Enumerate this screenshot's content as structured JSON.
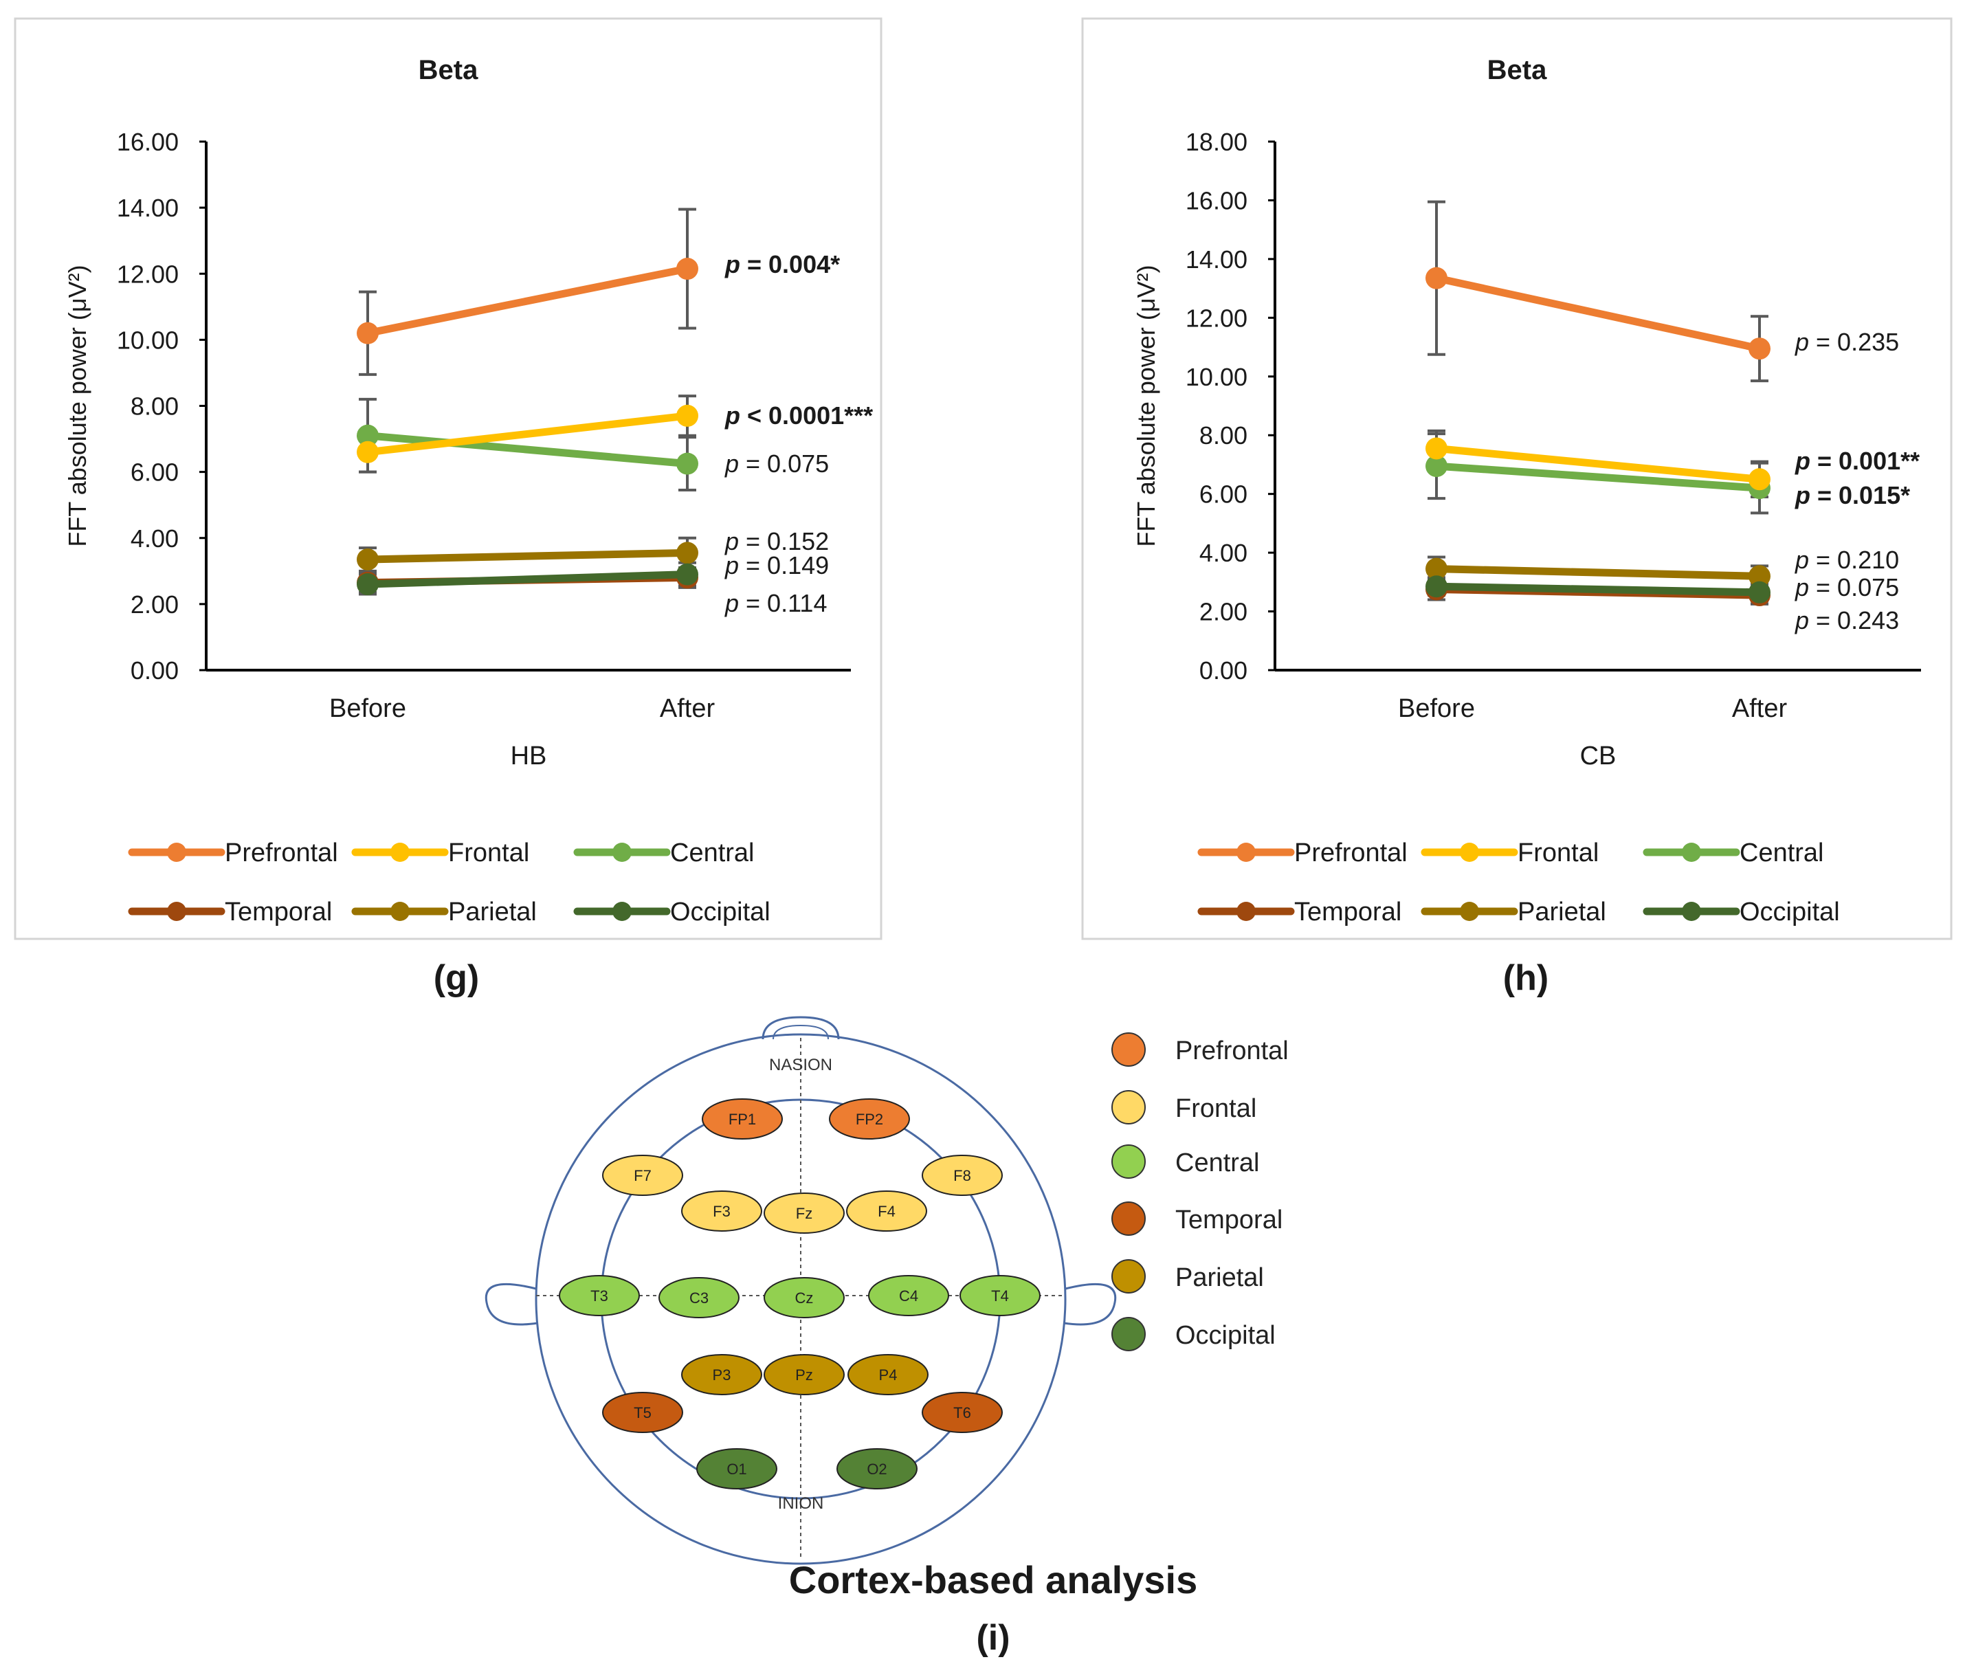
{
  "chart_data": [
    {
      "id": "g",
      "type": "line",
      "title": "Beta",
      "xlabel": "HB",
      "ylabel": "FFT absolute power (μV²)",
      "categories": [
        "Before",
        "After"
      ],
      "ylim": [
        0,
        16
      ],
      "yticks": [
        "0.00",
        "2.00",
        "4.00",
        "6.00",
        "8.00",
        "10.00",
        "12.00",
        "14.00",
        "16.00"
      ],
      "series": [
        {
          "name": "Prefrontal",
          "color": "#ED7D31",
          "values": [
            10.2,
            12.15
          ],
          "errors": [
            1.25,
            1.8
          ],
          "p_label": "p = 0.004*",
          "bold": true
        },
        {
          "name": "Frontal",
          "color": "#FFC000",
          "values": [
            6.6,
            7.7
          ],
          "errors": [
            0.6,
            0.6
          ],
          "p_label": "p < 0.0001***",
          "bold": true
        },
        {
          "name": "Central",
          "color": "#70AD47",
          "values": [
            7.1,
            6.25
          ],
          "errors": [
            1.1,
            0.8
          ],
          "p_label": "p = 0.075",
          "bold": false
        },
        {
          "name": "Temporal",
          "color": "#9E480E",
          "values": [
            2.65,
            2.8
          ],
          "errors": [
            0.3,
            0.3
          ],
          "p_label": "p = 0.114",
          "bold": false
        },
        {
          "name": "Parietal",
          "color": "#997300",
          "values": [
            3.35,
            3.55
          ],
          "errors": [
            0.35,
            0.45
          ],
          "p_label": "p = 0.152",
          "bold": false
        },
        {
          "name": "Occipital",
          "color": "#43682B",
          "values": [
            2.6,
            2.9
          ],
          "errors": [
            0.3,
            0.35
          ],
          "p_label": "p = 0.149",
          "bold": false
        }
      ],
      "panel_label": "(g)"
    },
    {
      "id": "h",
      "type": "line",
      "title": "Beta",
      "xlabel": "CB",
      "ylabel": "FFT absolute power (μV²)",
      "categories": [
        "Before",
        "After"
      ],
      "ylim": [
        0,
        18
      ],
      "yticks": [
        "0.00",
        "2.00",
        "4.00",
        "6.00",
        "8.00",
        "10.00",
        "12.00",
        "14.00",
        "16.00",
        "18.00"
      ],
      "series": [
        {
          "name": "Prefrontal",
          "color": "#ED7D31",
          "values": [
            13.35,
            10.95
          ],
          "errors": [
            2.6,
            1.1
          ],
          "p_label": "p = 0.235",
          "bold": false
        },
        {
          "name": "Frontal",
          "color": "#FFC000",
          "values": [
            7.55,
            6.5
          ],
          "errors": [
            0.6,
            0.6
          ],
          "p_label": "p = 0.001**",
          "bold": true
        },
        {
          "name": "Central",
          "color": "#70AD47",
          "values": [
            6.95,
            6.2
          ],
          "errors": [
            1.1,
            0.85
          ],
          "p_label": "p = 0.015*",
          "bold": true
        },
        {
          "name": "Temporal",
          "color": "#9E480E",
          "values": [
            2.75,
            2.55
          ],
          "errors": [
            0.35,
            0.3
          ],
          "p_label": "p = 0.243",
          "bold": false
        },
        {
          "name": "Parietal",
          "color": "#997300",
          "values": [
            3.45,
            3.2
          ],
          "errors": [
            0.4,
            0.35
          ],
          "p_label": "p = 0.210",
          "bold": false
        },
        {
          "name": "Occipital",
          "color": "#43682B",
          "values": [
            2.85,
            2.65
          ],
          "errors": [
            0.3,
            0.3
          ],
          "p_label": "p = 0.075",
          "bold": false
        }
      ],
      "panel_label": "(h)"
    }
  ],
  "legend": [
    "Prefrontal",
    "Frontal",
    "Central",
    "Temporal",
    "Parietal",
    "Occipital"
  ],
  "brain_map": {
    "nasion": "NASION",
    "inion": "INION",
    "electrodes": [
      {
        "label": "FP1",
        "region": "Prefrontal"
      },
      {
        "label": "FP2",
        "region": "Prefrontal"
      },
      {
        "label": "F7",
        "region": "Frontal"
      },
      {
        "label": "F8",
        "region": "Frontal"
      },
      {
        "label": "F3",
        "region": "Frontal"
      },
      {
        "label": "Fz",
        "region": "Frontal"
      },
      {
        "label": "F4",
        "region": "Frontal"
      },
      {
        "label": "T3",
        "region": "Central"
      },
      {
        "label": "C3",
        "region": "Central"
      },
      {
        "label": "Cz",
        "region": "Central"
      },
      {
        "label": "C4",
        "region": "Central"
      },
      {
        "label": "T4",
        "region": "Central"
      },
      {
        "label": "P3",
        "region": "Parietal"
      },
      {
        "label": "Pz",
        "region": "Parietal"
      },
      {
        "label": "P4",
        "region": "Parietal"
      },
      {
        "label": "T5",
        "region": "Temporal"
      },
      {
        "label": "T6",
        "region": "Temporal"
      },
      {
        "label": "O1",
        "region": "Occipital"
      },
      {
        "label": "O2",
        "region": "Occipital"
      }
    ],
    "region_colors": {
      "Prefrontal": "#ED7D31",
      "Frontal": "#FFD966",
      "Central": "#92D050",
      "Temporal": "#C55A11",
      "Parietal": "#BF9000",
      "Occipital": "#548235"
    },
    "legend": [
      "Prefrontal",
      "Frontal",
      "Central",
      "Temporal",
      "Parietal",
      "Occipital"
    ],
    "title": "Cortex-based analysis",
    "panel_label": "(i)"
  }
}
